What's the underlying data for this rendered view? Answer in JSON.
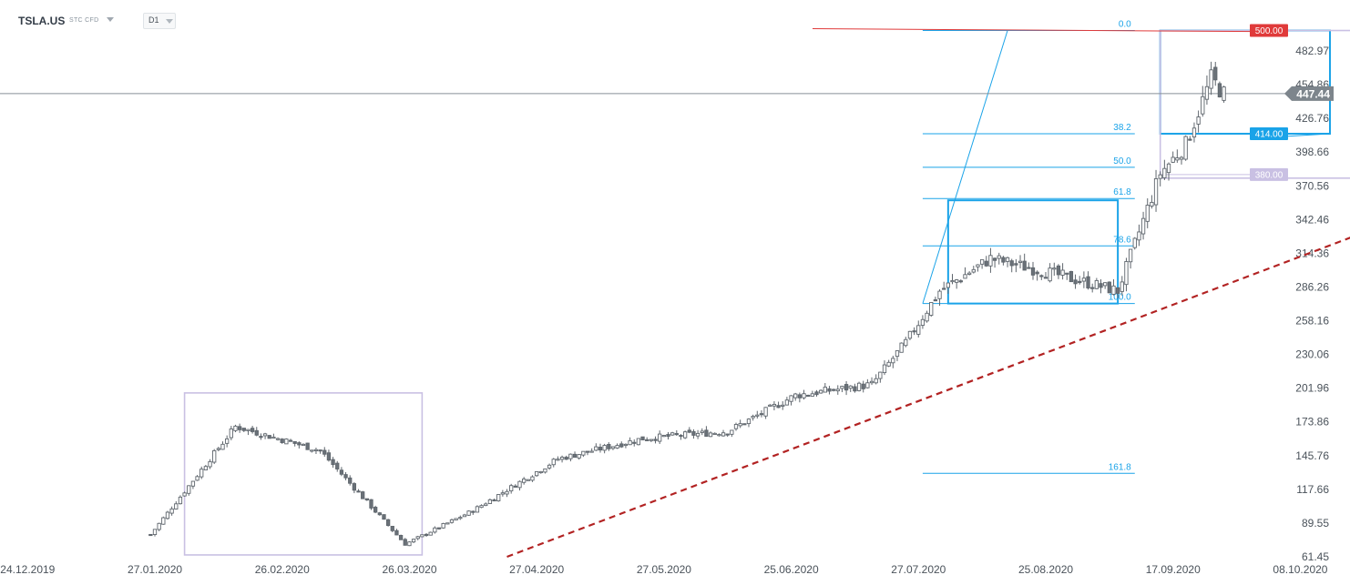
{
  "header": {
    "symbol": "TSLA.US",
    "subtitle": "STC CFD",
    "timeframe": "D1"
  },
  "chart_data": {
    "type": "candlestick",
    "timeframe": "D1",
    "x_tick_labels": [
      "24.12.2019",
      "27.01.2020",
      "26.02.2020",
      "26.03.2020",
      "27.04.2020",
      "27.05.2020",
      "25.06.2020",
      "27.07.2020",
      "25.08.2020",
      "17.09.2020",
      "08.10.2020"
    ],
    "y_tick_labels": [
      "482.97",
      "454.86",
      "426.76",
      "398.66",
      "370.56",
      "342.46",
      "314.36",
      "286.26",
      "258.16",
      "230.06",
      "201.96",
      "173.86",
      "145.76",
      "117.66",
      "89.55",
      "61.45"
    ],
    "ylim": [
      61.45,
      510
    ],
    "current_price": 447.44,
    "current_price_label": "447.44",
    "price_labels": [
      {
        "value": 500.0,
        "label": "500.00",
        "color": "#e03a3a"
      },
      {
        "value": 414.0,
        "label": "414.00",
        "color": "#1aa3e8"
      },
      {
        "value": 380.0,
        "label": "380.00",
        "color": "#c9c0e3"
      }
    ],
    "fibonacci": {
      "color": "#1aa3e8",
      "levels": [
        {
          "label": "0.0",
          "value": 500.0
        },
        {
          "label": "38.2",
          "value": 414.0
        },
        {
          "label": "50.0",
          "value": 386.0
        },
        {
          "label": "61.8",
          "value": 360.0
        },
        {
          "label": "78.6",
          "value": 320.5
        },
        {
          "label": "100.0",
          "value": 272.5
        },
        {
          "label": "161.8",
          "value": 131.0
        }
      ]
    },
    "trendline": {
      "color": "#b22222",
      "style": "dashed",
      "start": {
        "x_index": 118,
        "y": 61.45
      },
      "end": {
        "x_index": 318,
        "y": 329.0
      }
    },
    "resistance_line": {
      "color": "#e03a3a",
      "y_start": 501.5,
      "y_end": 499.0
    },
    "rectangles": [
      {
        "color": "#c9c0e3",
        "x_from": 42,
        "x_to": 98,
        "y_from": 63.0,
        "y_to": 198.0
      },
      {
        "color": "#1aa3e8",
        "x_from": 222,
        "x_to": 262,
        "y_from": 272.5,
        "y_to": 358.5
      },
      {
        "color": "#1aa3e8",
        "x_from": 272,
        "x_to": 312,
        "y_from": 414.0,
        "y_to": 500.0
      },
      {
        "color": "#c9c0e3",
        "x_from": 272,
        "x_to": 330,
        "y_from": 377.0,
        "y_to": 500.0
      }
    ],
    "anchors": [
      {
        "x_index": 34,
        "y": 80
      },
      {
        "x_index": 54,
        "y": 170
      },
      {
        "x_index": 74,
        "y": 150
      },
      {
        "x_index": 94,
        "y": 72
      },
      {
        "x_index": 110,
        "y": 100
      },
      {
        "x_index": 130,
        "y": 143
      },
      {
        "x_index": 150,
        "y": 160
      },
      {
        "x_index": 170,
        "y": 166
      },
      {
        "x_index": 186,
        "y": 196
      },
      {
        "x_index": 204,
        "y": 205
      },
      {
        "x_index": 212,
        "y": 240
      },
      {
        "x_index": 220,
        "y": 283
      },
      {
        "x_index": 232,
        "y": 310
      },
      {
        "x_index": 246,
        "y": 298
      },
      {
        "x_index": 262,
        "y": 283
      },
      {
        "x_index": 272,
        "y": 381
      },
      {
        "x_index": 278,
        "y": 405
      },
      {
        "x_index": 284,
        "y": 460
      },
      {
        "x_index": 287,
        "y": 447
      }
    ]
  }
}
